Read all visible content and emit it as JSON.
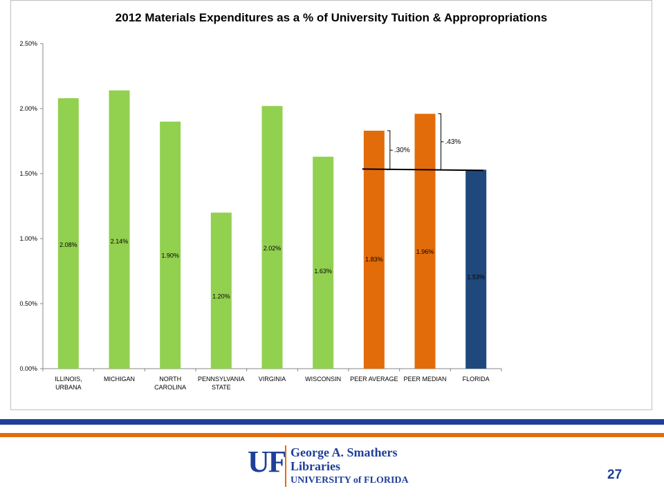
{
  "chart_data": {
    "type": "bar",
    "title": "2012 Materials Expenditures as a % of University Tuition & Appropropriations",
    "categories": [
      [
        "ILLINOIS,",
        "URBANA"
      ],
      [
        "MICHIGAN"
      ],
      [
        "NORTH",
        "CAROLINA"
      ],
      [
        "PENNSYLVANIA",
        "STATE"
      ],
      [
        "VIRGINIA"
      ],
      [
        "WISCONSIN"
      ],
      [
        "PEER AVERAGE"
      ],
      [
        "PEER MEDIAN"
      ],
      [
        "FLORIDA"
      ]
    ],
    "values": [
      2.08,
      2.14,
      1.9,
      1.2,
      2.02,
      1.63,
      1.83,
      1.96,
      1.53
    ],
    "data_labels": [
      "2.08%",
      "2.14%",
      "1.90%",
      "1.20%",
      "2.02%",
      "1.63%",
      "1.83%",
      "1.96%",
      "1.53%"
    ],
    "bar_colors": [
      "#92d050",
      "#92d050",
      "#92d050",
      "#92d050",
      "#92d050",
      "#92d050",
      "#e36c0a",
      "#e36c0a",
      "#1f497d"
    ],
    "ylim": [
      0,
      2.5
    ],
    "y_ticks": [
      "0.00%",
      "0.50%",
      "1.00%",
      "1.50%",
      "2.00%",
      "2.50%"
    ],
    "y_tick_values": [
      0,
      0.5,
      1.0,
      1.5,
      2.0,
      2.5
    ],
    "reference_line": {
      "value": 1.53,
      "from_category": 6,
      "to_category": 8
    },
    "gap_annotations": [
      {
        "category": 6,
        "low": 1.53,
        "high": 1.83,
        "label": ".30%"
      },
      {
        "category": 7,
        "low": 1.53,
        "high": 1.96,
        "label": ".43%"
      }
    ],
    "grid": false,
    "legend": "none"
  },
  "footer": {
    "logo_mark": "UF",
    "logo_line1": "George A. Smathers",
    "logo_line2": "Libraries",
    "logo_line3": "UNIVERSITY of FLORIDA",
    "page_number": "27"
  },
  "colors": {
    "stripe_blue": "#1f3f99",
    "stripe_orange": "#e36c0a"
  }
}
